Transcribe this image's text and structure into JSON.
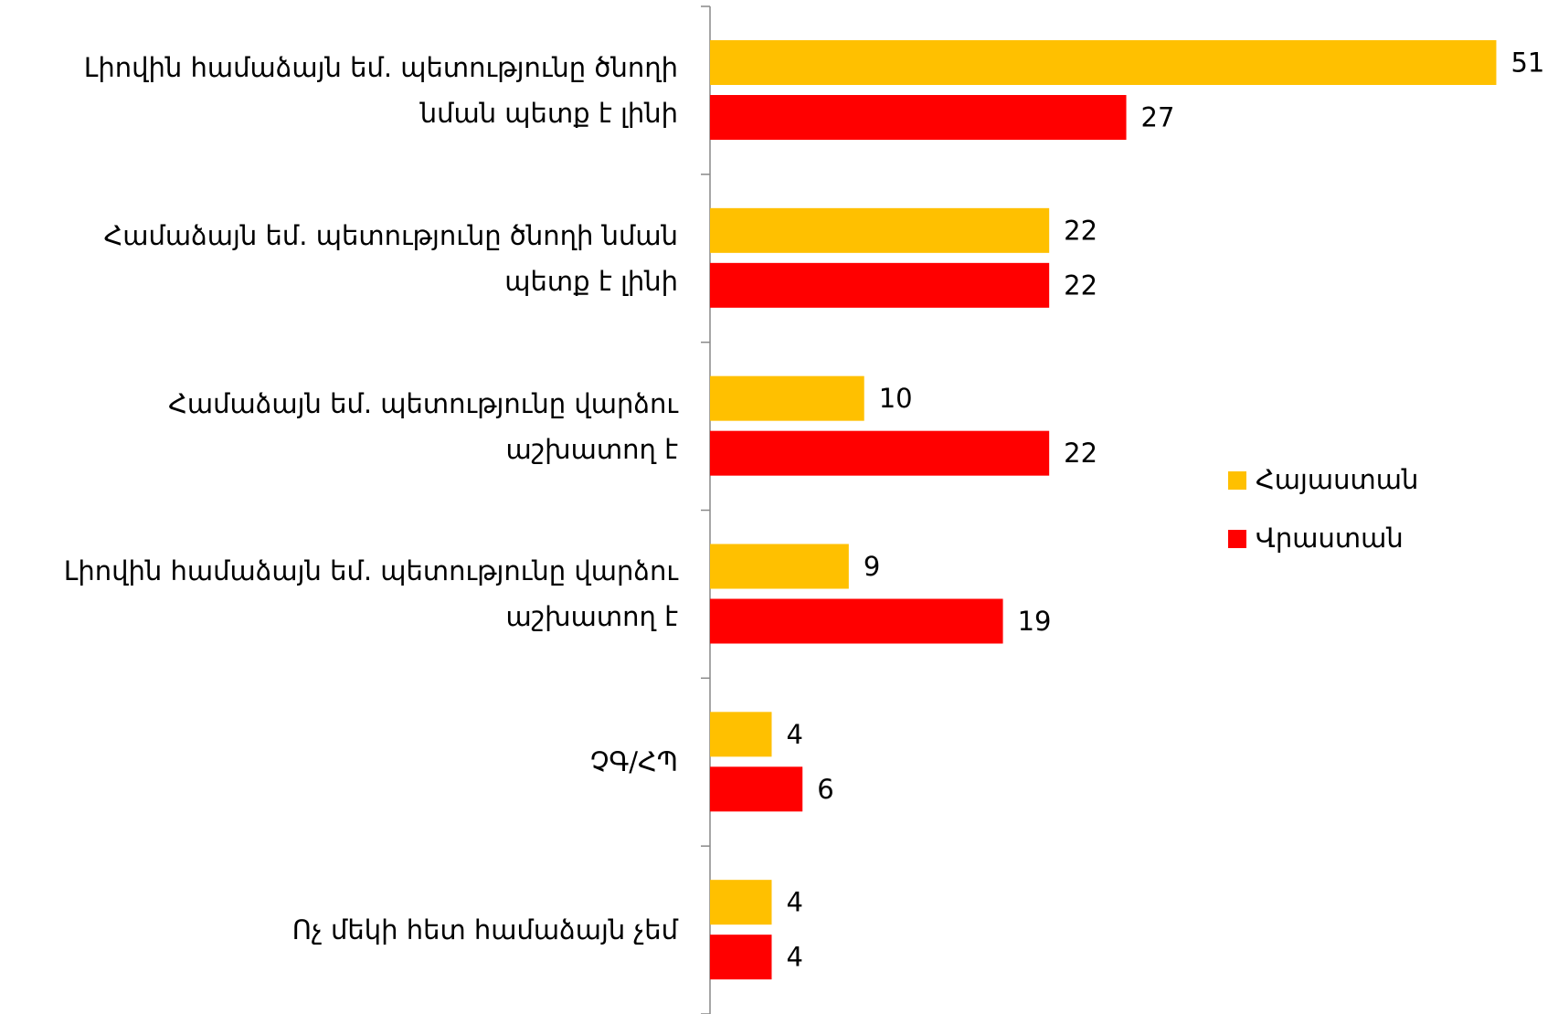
{
  "chart_data": {
    "type": "hbar",
    "categories": [
      "Լիովին համաձայն եմ. պետությունը ծնողի նման պետք է լինի",
      "Համաձայն եմ. պետությունը ծնողի նման պետք է լինի",
      "Համաձայն եմ.  պետությունը վարձու աշխատող է",
      "Լիովին համաձայն եմ.  պետությունը վարձու աշխատող է",
      "ՉԳ/ՀՊ",
      "Ոչ մեկի հետ համաձայն չեմ"
    ],
    "series": [
      {
        "name": "Հայաստան",
        "color": "#FFC000",
        "values": [
          51,
          22,
          10,
          9,
          4,
          4
        ]
      },
      {
        "name": "Վրաստան",
        "color": "#FF0000",
        "values": [
          27,
          22,
          22,
          19,
          6,
          4
        ]
      }
    ],
    "xlim": [
      0,
      55
    ],
    "legend": "right"
  }
}
